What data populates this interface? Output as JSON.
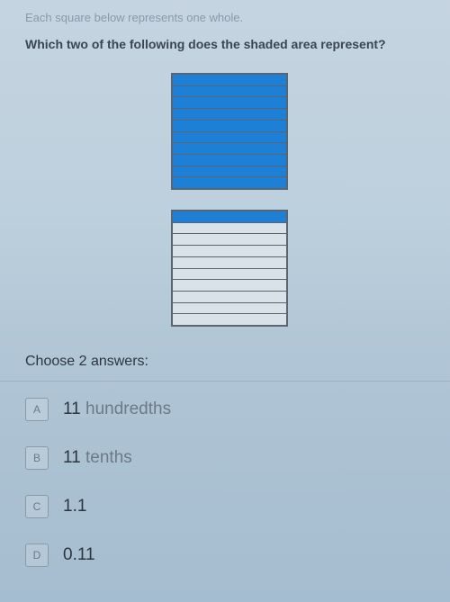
{
  "intro": "Each square below represents one whole.",
  "question": "Which two of the following does the shaded area represent?",
  "squares": {
    "count": 2,
    "strips_per_square": 10,
    "shaded_color": "#1e7fd6",
    "unshaded_color": "#d8e2e8",
    "border_color": "#5a6570",
    "square1_shaded_strips": 10,
    "square2_shaded_strips": 1
  },
  "choose_label": "Choose 2 answers:",
  "answers": [
    {
      "letter": "A",
      "number": "11",
      "unit": "hundredths"
    },
    {
      "letter": "B",
      "number": "11",
      "unit": "tenths"
    },
    {
      "letter": "C",
      "number": "1.1",
      "unit": ""
    },
    {
      "letter": "D",
      "number": "0.11",
      "unit": ""
    }
  ]
}
